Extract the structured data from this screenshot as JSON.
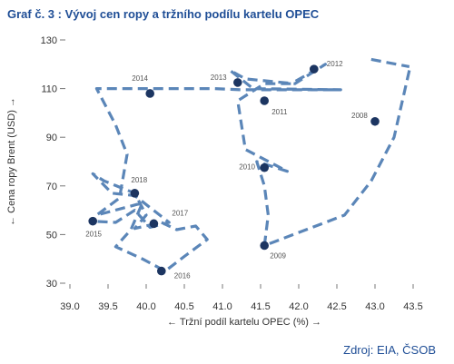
{
  "header": {
    "title": "Graf č. 3 : Vývoj cen ropy a tržního podílu kartelu OPEC"
  },
  "footer": {
    "source": "Zdroj: EIA, ČSOB"
  },
  "colors": {
    "line": "#5b86b8",
    "point": "#1c3561",
    "title": "#1f4e96"
  },
  "chart_data": {
    "type": "scatter",
    "xlabel": "← Tržní podíl kartelu OPEC (%) →",
    "ylabel": "← Cena ropy Brent (USD) →",
    "xlim": [
      39.0,
      43.5
    ],
    "ylim": [
      30,
      130
    ],
    "x_ticks": [
      "39.0",
      "39.5",
      "40.0",
      "40.5",
      "41.0",
      "41.5",
      "42.0",
      "42.5",
      "43.0",
      "43.5"
    ],
    "y_ticks": [
      "30",
      "50",
      "70",
      "90",
      "110",
      "130"
    ],
    "grid": false,
    "points": [
      {
        "label": "2008",
        "x": 43.0,
        "y": 96.5
      },
      {
        "label": "2009",
        "x": 41.55,
        "y": 45.5
      },
      {
        "label": "2010",
        "x": 41.55,
        "y": 77.5
      },
      {
        "label": "2011",
        "x": 41.55,
        "y": 105.0
      },
      {
        "label": "2012",
        "x": 42.2,
        "y": 118.0
      },
      {
        "label": "2013",
        "x": 41.2,
        "y": 112.5
      },
      {
        "label": "2014",
        "x": 40.05,
        "y": 108.0
      },
      {
        "label": "2015",
        "x": 39.3,
        "y": 55.5
      },
      {
        "label": "2016",
        "x": 40.2,
        "y": 35.0
      },
      {
        "label": "2017",
        "x": 40.1,
        "y": 54.5
      },
      {
        "label": "2018",
        "x": 39.85,
        "y": 67.0
      }
    ],
    "monthly_path": [
      [
        43.45,
        117.5
      ],
      [
        43.25,
        90.0
      ],
      [
        42.95,
        72.0
      ],
      [
        42.6,
        58.0
      ],
      [
        41.55,
        45.5
      ],
      [
        41.6,
        58.0
      ],
      [
        41.55,
        70.0
      ],
      [
        41.45,
        80.0
      ],
      [
        41.85,
        76.0
      ],
      [
        41.3,
        85.0
      ],
      [
        41.2,
        105.0
      ],
      [
        41.55,
        112.0
      ],
      [
        41.9,
        112.0
      ],
      [
        42.35,
        120.0
      ],
      [
        41.95,
        112.0
      ],
      [
        41.3,
        114.0
      ],
      [
        41.1,
        117.5
      ],
      [
        41.4,
        110.0
      ],
      [
        42.55,
        109.5
      ],
      [
        41.25,
        109.5
      ],
      [
        40.9,
        110.0
      ],
      [
        40.2,
        110.0
      ],
      [
        39.55,
        110.0
      ],
      [
        39.35,
        110.0
      ],
      [
        39.6,
        95.0
      ],
      [
        39.75,
        83.0
      ],
      [
        39.65,
        65.0
      ],
      [
        39.35,
        58.0
      ],
      [
        39.95,
        63.0
      ],
      [
        39.8,
        52.0
      ],
      [
        39.6,
        45.0
      ],
      [
        39.95,
        40.0
      ],
      [
        40.25,
        35.0
      ],
      [
        40.5,
        41.0
      ],
      [
        40.8,
        48.0
      ],
      [
        40.65,
        53.5
      ],
      [
        40.4,
        52.0
      ],
      [
        40.2,
        55.0
      ],
      [
        39.85,
        52.5
      ],
      [
        40.0,
        58.0
      ],
      [
        39.85,
        67.0
      ],
      [
        39.45,
        72.0
      ],
      [
        39.3,
        75.0
      ],
      [
        39.55,
        67.0
      ],
      [
        39.85,
        66.0
      ],
      [
        40.3,
        55.0
      ],
      [
        40.05,
        53.0
      ],
      [
        39.85,
        60.0
      ],
      [
        39.6,
        55.0
      ],
      [
        39.3,
        55.5
      ]
    ],
    "segments": [
      [
        [
          42.95,
          122.0
        ],
        [
          43.45,
          119.0
        ]
      ]
    ]
  }
}
